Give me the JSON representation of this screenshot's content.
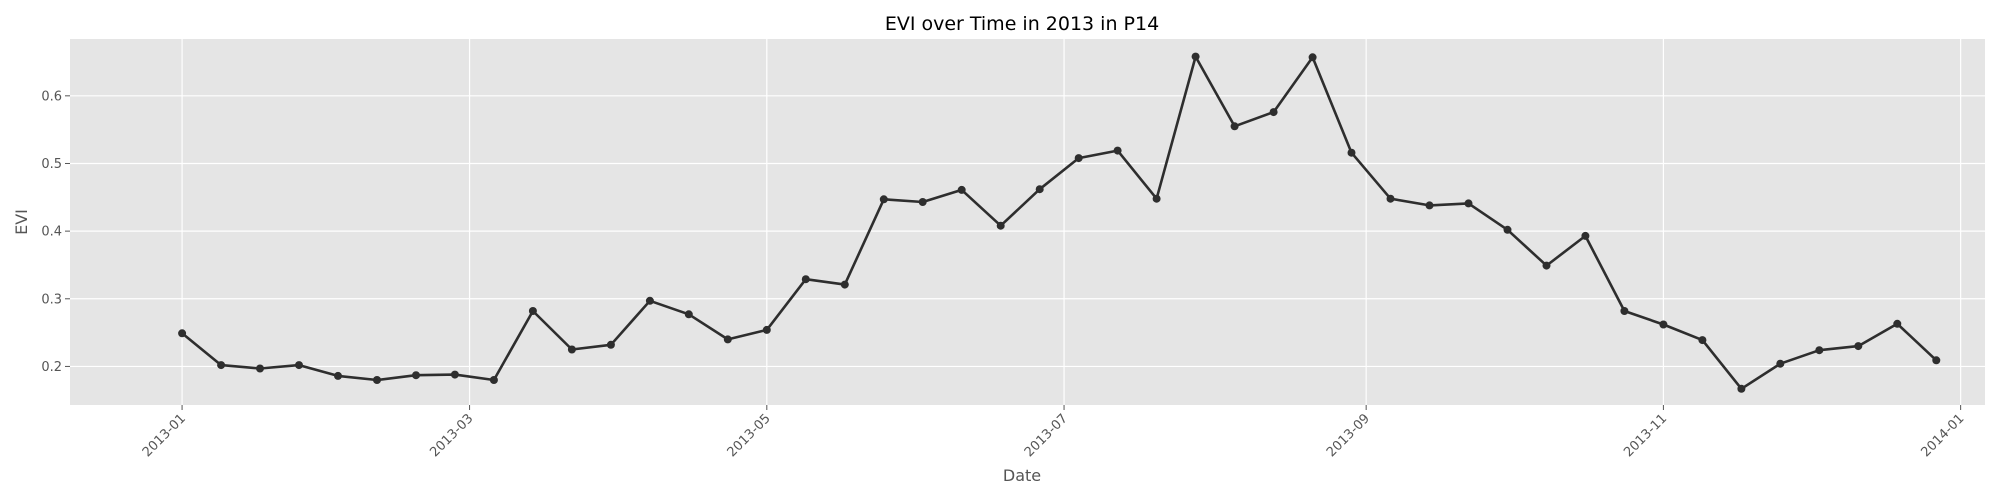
{
  "chart_data": {
    "type": "line",
    "title": "EVI over Time in 2013 in P14",
    "xlabel": "Date",
    "ylabel": "EVI",
    "grid": true,
    "style": {
      "background": "#e5e5e5",
      "line_color": "#2e2e2e"
    },
    "x_ticks": [
      "2013-01",
      "2013-03",
      "2013-05",
      "2013-07",
      "2013-09",
      "2013-11",
      "2014-01"
    ],
    "y_ticks": [
      "0.2",
      "0.3",
      "0.4",
      "0.5",
      "0.6"
    ],
    "xlim": [
      "2012-12-09",
      "2014-01-06"
    ],
    "ylim": [
      0.143,
      0.684
    ],
    "series": [
      {
        "x": [
          "2013-01-01",
          "2013-01-09",
          "2013-01-17",
          "2013-01-25",
          "2013-02-02",
          "2013-02-10",
          "2013-02-18",
          "2013-02-26",
          "2013-03-06",
          "2013-03-14",
          "2013-03-22",
          "2013-03-30",
          "2013-04-07",
          "2013-04-15",
          "2013-04-23",
          "2013-05-01",
          "2013-05-09",
          "2013-05-17",
          "2013-05-25",
          "2013-06-02",
          "2013-06-10",
          "2013-06-18",
          "2013-06-26",
          "2013-07-04",
          "2013-07-12",
          "2013-07-20",
          "2013-07-28",
          "2013-08-05",
          "2013-08-13",
          "2013-08-21",
          "2013-08-29",
          "2013-09-06",
          "2013-09-14",
          "2013-09-22",
          "2013-09-30",
          "2013-10-08",
          "2013-10-16",
          "2013-10-24",
          "2013-11-01",
          "2013-11-09",
          "2013-11-17",
          "2013-11-25",
          "2013-12-03",
          "2013-12-11",
          "2013-12-19",
          "2013-12-27"
        ],
        "y": [
          0.249,
          0.202,
          0.197,
          0.202,
          0.186,
          0.18,
          0.187,
          0.188,
          0.18,
          0.282,
          0.225,
          0.232,
          0.297,
          0.277,
          0.24,
          0.254,
          0.329,
          0.321,
          0.447,
          0.443,
          0.461,
          0.408,
          0.462,
          0.508,
          0.519,
          0.448,
          0.658,
          0.555,
          0.576,
          0.657,
          0.516,
          0.448,
          0.438,
          0.441,
          0.402,
          0.349,
          0.393,
          0.282,
          0.262,
          0.239,
          0.167,
          0.204,
          0.224,
          0.23,
          0.263,
          0.209
        ]
      }
    ]
  }
}
